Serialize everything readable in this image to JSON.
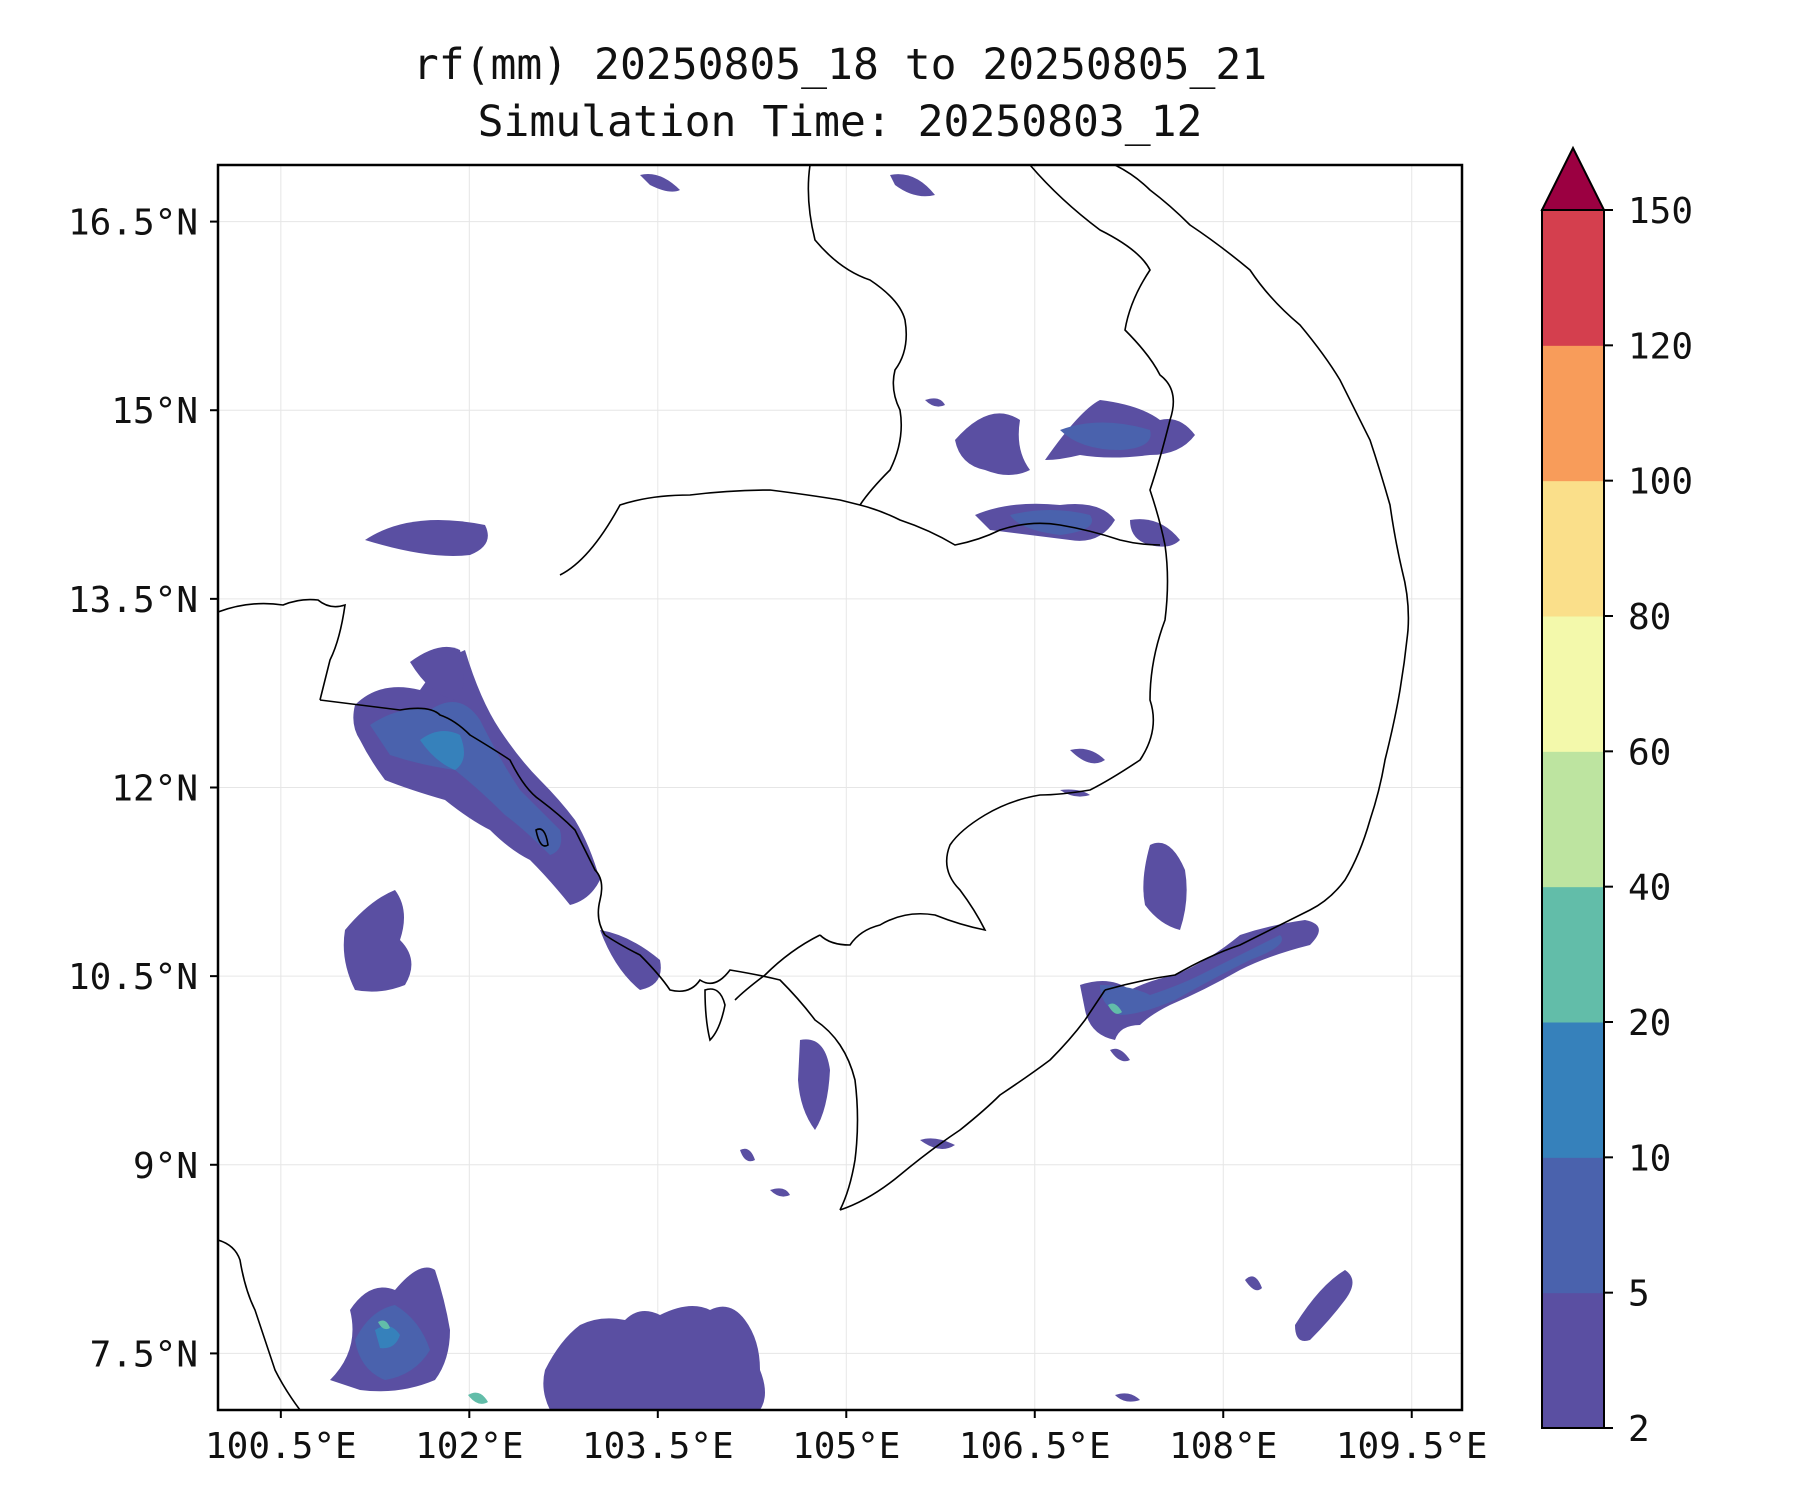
{
  "title": {
    "line1": "rf(mm) 20250805_18 to 20250805_21",
    "line2": "Simulation Time: 20250803_12"
  },
  "map": {
    "lon_range": [
      100.0,
      109.9
    ],
    "lat_range": [
      7.05,
      16.95
    ],
    "x_ticks": [
      "100.5°E",
      "102°E",
      "103.5°E",
      "105°E",
      "106.5°E",
      "108°E",
      "109.5°E"
    ],
    "y_ticks": [
      "16.5°N",
      "15°N",
      "13.5°N",
      "12°N",
      "10.5°N",
      "9°N",
      "7.5°N"
    ],
    "grid": true,
    "rain_cells": [
      {
        "lon": 101.5,
        "lat": 13.6,
        "level": 1
      },
      {
        "lon": 101.9,
        "lat": 12.6,
        "level": 2
      },
      {
        "lon": 102.2,
        "lat": 12.2,
        "level": 2
      },
      {
        "lon": 102.7,
        "lat": 11.6,
        "level": 1
      },
      {
        "lon": 101.3,
        "lat": 10.7,
        "level": 1
      },
      {
        "lon": 105.9,
        "lat": 14.8,
        "level": 1
      },
      {
        "lon": 106.8,
        "lat": 14.8,
        "level": 1
      },
      {
        "lon": 106.6,
        "lat": 14.2,
        "level": 2
      },
      {
        "lon": 107.4,
        "lat": 11.2,
        "level": 1
      },
      {
        "lon": 107.9,
        "lat": 10.5,
        "level": 2
      },
      {
        "lon": 107.0,
        "lat": 10.2,
        "level": 3
      },
      {
        "lon": 101.5,
        "lat": 7.7,
        "level": 3
      },
      {
        "lon": 103.5,
        "lat": 7.5,
        "level": 1
      },
      {
        "lon": 108.6,
        "lat": 7.8,
        "level": 1
      },
      {
        "lon": 104.8,
        "lat": 9.5,
        "level": 1
      }
    ]
  },
  "colorbar": {
    "levels": [
      2,
      5,
      10,
      20,
      40,
      60,
      80,
      100,
      120,
      150
    ],
    "labels": [
      "2",
      "5",
      "10",
      "20",
      "40",
      "60",
      "80",
      "100",
      "120",
      "150"
    ],
    "colors": [
      "#5a4fa2",
      "#4a62ad",
      "#3681bb",
      "#62bda9",
      "#bde4a0",
      "#f3f9ab",
      "#fadf8a",
      "#f89c5a",
      "#d43f4e",
      "#9b0041"
    ],
    "extend": "max"
  }
}
